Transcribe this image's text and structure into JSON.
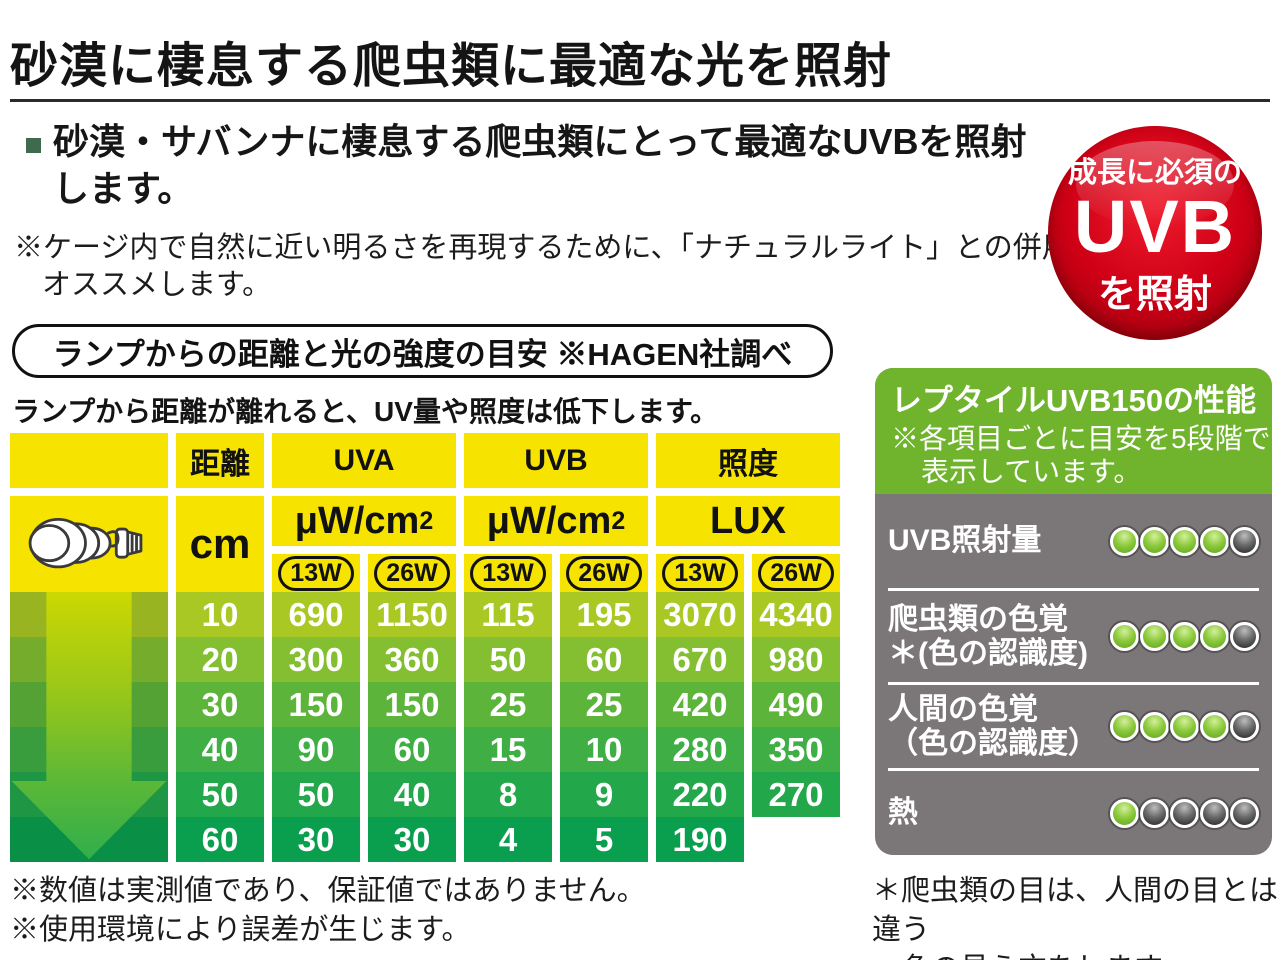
{
  "title": "砂漠に棲息する爬虫類に最適な光を照射",
  "intro": {
    "bullet_line1": "砂漠・サバンナに棲息する爬虫類にとって最適なUVBを照射",
    "bullet_line2": "します。",
    "note_line1": "※ケージ内で自然に近い明るさを再現するために、「ナチュラルライト」との併用を",
    "note_line2": "オススメします。"
  },
  "badge": {
    "line1": "成長に必須の",
    "line2": "UVB",
    "line3": "を照射",
    "color": "#c3000f"
  },
  "measure": {
    "box_title": "ランプからの距離と光の強度の目安 ※HAGEN社調べ",
    "subtitle": "ランプから距離が離れると、UV量や照度は低下します。"
  },
  "table": {
    "headers": {
      "distance": "距離",
      "uva": "UVA",
      "uvb": "UVB",
      "lux": "照度"
    },
    "units": {
      "distance": "cm",
      "uva_base": "μW/cm",
      "uva_sup": "2",
      "uvb_base": "μW/cm",
      "uvb_sup": "2",
      "lux": "LUX"
    },
    "watt_labels": [
      "13W",
      "26W"
    ],
    "header_color": "#f6e400",
    "row_colors": [
      "#a9c823",
      "#83bf30",
      "#5db43a",
      "#3fae44",
      "#22a74a",
      "#0a9f4e"
    ],
    "rows": [
      {
        "distance": "10",
        "uva13": "690",
        "uva26": "1150",
        "uvb13": "115",
        "uvb26": "195",
        "lux13": "3070",
        "lux26": "4340"
      },
      {
        "distance": "20",
        "uva13": "300",
        "uva26": "360",
        "uvb13": "50",
        "uvb26": "60",
        "lux13": "670",
        "lux26": "980"
      },
      {
        "distance": "30",
        "uva13": "150",
        "uva26": "150",
        "uvb13": "25",
        "uvb26": "25",
        "lux13": "420",
        "lux26": "490"
      },
      {
        "distance": "40",
        "uva13": "90",
        "uva26": "60",
        "uvb13": "15",
        "uvb26": "10",
        "lux13": "280",
        "lux26": "350"
      },
      {
        "distance": "50",
        "uva13": "50",
        "uva26": "40",
        "uvb13": "8",
        "uvb26": "9",
        "lux13": "220",
        "lux26": "270"
      },
      {
        "distance": "60",
        "uva13": "30",
        "uva26": "30",
        "uvb13": "4",
        "uvb26": "5",
        "lux13": "190",
        "lux26": ""
      }
    ]
  },
  "performance": {
    "title": "レプタイルUVB150の性能",
    "note_line1": "※各項目ごとに目安を5段階で",
    "note_line2": "表示しています。",
    "scale_max": 5,
    "header_color": "#6fb42c",
    "panel_color": "#7b7779",
    "items": [
      {
        "label1": "UVB照射量",
        "label2": "",
        "value": 4
      },
      {
        "label1": "爬虫類の色覚",
        "label2": "＊(色の認識度)",
        "value": 4
      },
      {
        "label1": "人間の色覚",
        "label2": "（色の認識度）",
        "value": 4
      },
      {
        "label1": "熱",
        "label2": "",
        "value": 1
      }
    ]
  },
  "footnotes": {
    "left_line1": "※数値は実測値であり、保証値ではありません。",
    "left_line2": "※使用環境により誤差が生じます。",
    "right_line1": "＊爬虫類の目は、人間の目とは違う",
    "right_line2": "色の見え方をします。"
  }
}
